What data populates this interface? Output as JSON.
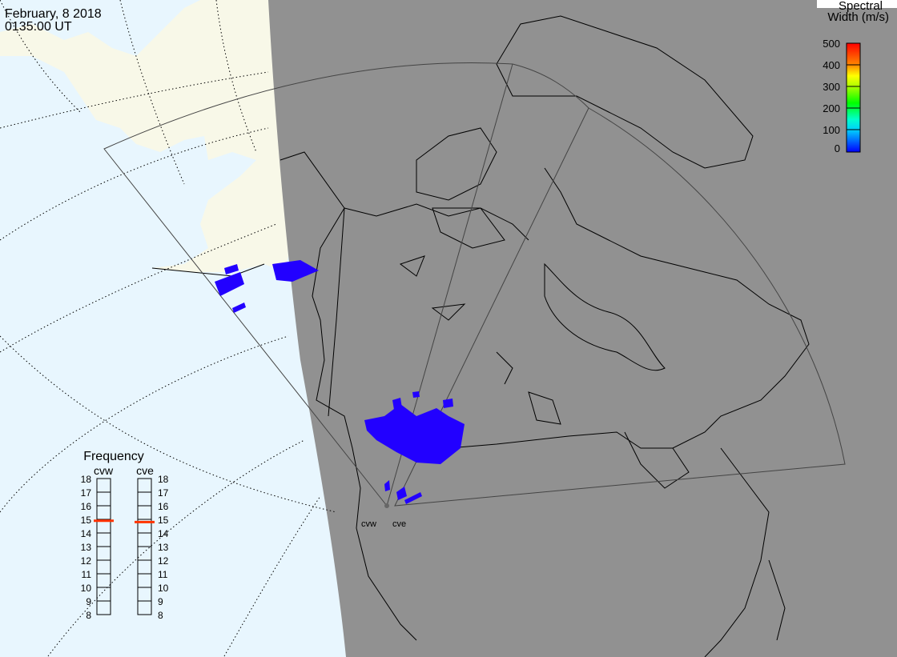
{
  "header": {
    "date": "February, 8 2018",
    "time": "0135:00 UT"
  },
  "colorbar": {
    "title_line1": "Spectral",
    "title_line2": "Width (m/s)",
    "ticks": [
      "500",
      "400",
      "300",
      "200",
      "100",
      "0"
    ],
    "range": [
      0,
      500
    ],
    "colors": [
      "#0000ff",
      "#00ffff",
      "#00ff44",
      "#00cc00",
      "#ffff00",
      "#ff8800",
      "#ff0000"
    ]
  },
  "frequency": {
    "title": "Frequency",
    "units_range": [
      8,
      18
    ],
    "ticks": [
      "18",
      "17",
      "16",
      "15",
      "14",
      "13",
      "12",
      "11",
      "10",
      "9",
      "8"
    ],
    "radars": [
      {
        "name": "cvw",
        "value_mhz": 14.9
      },
      {
        "name": "cve",
        "value_mhz": 14.8
      }
    ],
    "marker_color": "#ff3300"
  },
  "map": {
    "radar_labels": [
      "cvw",
      "cve"
    ],
    "colors": {
      "ocean_day": "#e8f6fe",
      "land_day": "#f8f8e8",
      "night": "#919191",
      "scatter": "#2200ff",
      "coast": "#000000"
    }
  }
}
